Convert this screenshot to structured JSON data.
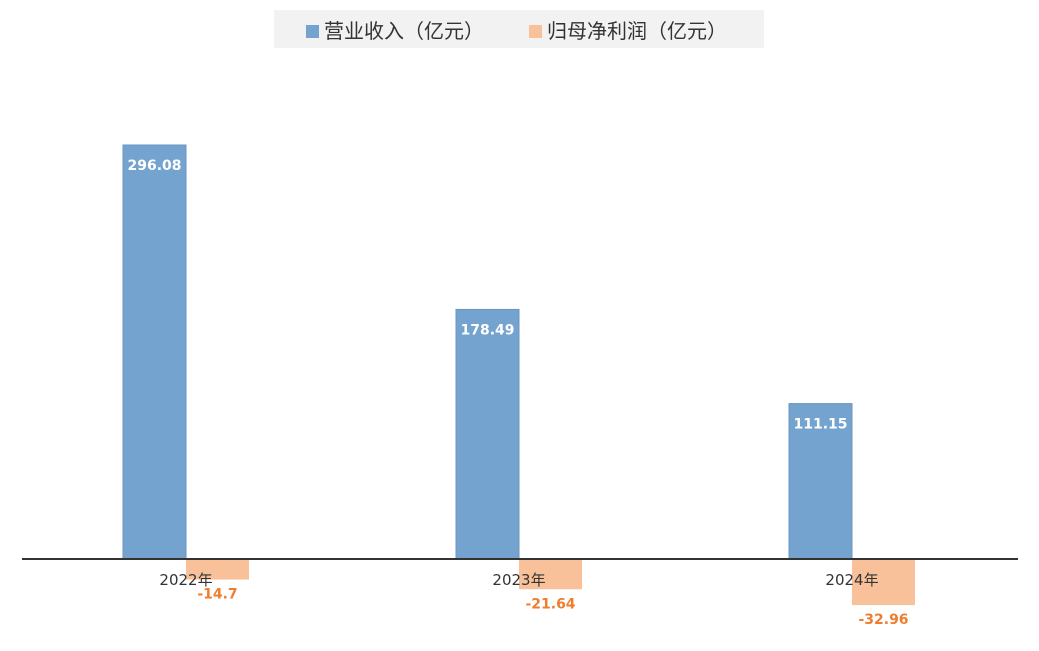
{
  "chart_data": {
    "type": "bar",
    "categories": [
      "2022年",
      "2023年",
      "2024年"
    ],
    "series": [
      {
        "name": "营业收入（亿元）",
        "values": [
          296.08,
          178.49,
          111.15
        ],
        "color": "#75a3cf",
        "labels": [
          "296.08",
          "178.49",
          "111.15"
        ]
      },
      {
        "name": "归母净利润（亿元）",
        "values": [
          -14.7,
          -21.64,
          -32.96
        ],
        "color": "#f8c19a",
        "labels": [
          "-14.7",
          "-21.64",
          "-32.96"
        ]
      }
    ],
    "negative_label_color": "#ee7d2e",
    "axis_line_color": "#333333",
    "ylim": [
      -40,
      340
    ],
    "grid": false,
    "legend": "top-center"
  }
}
